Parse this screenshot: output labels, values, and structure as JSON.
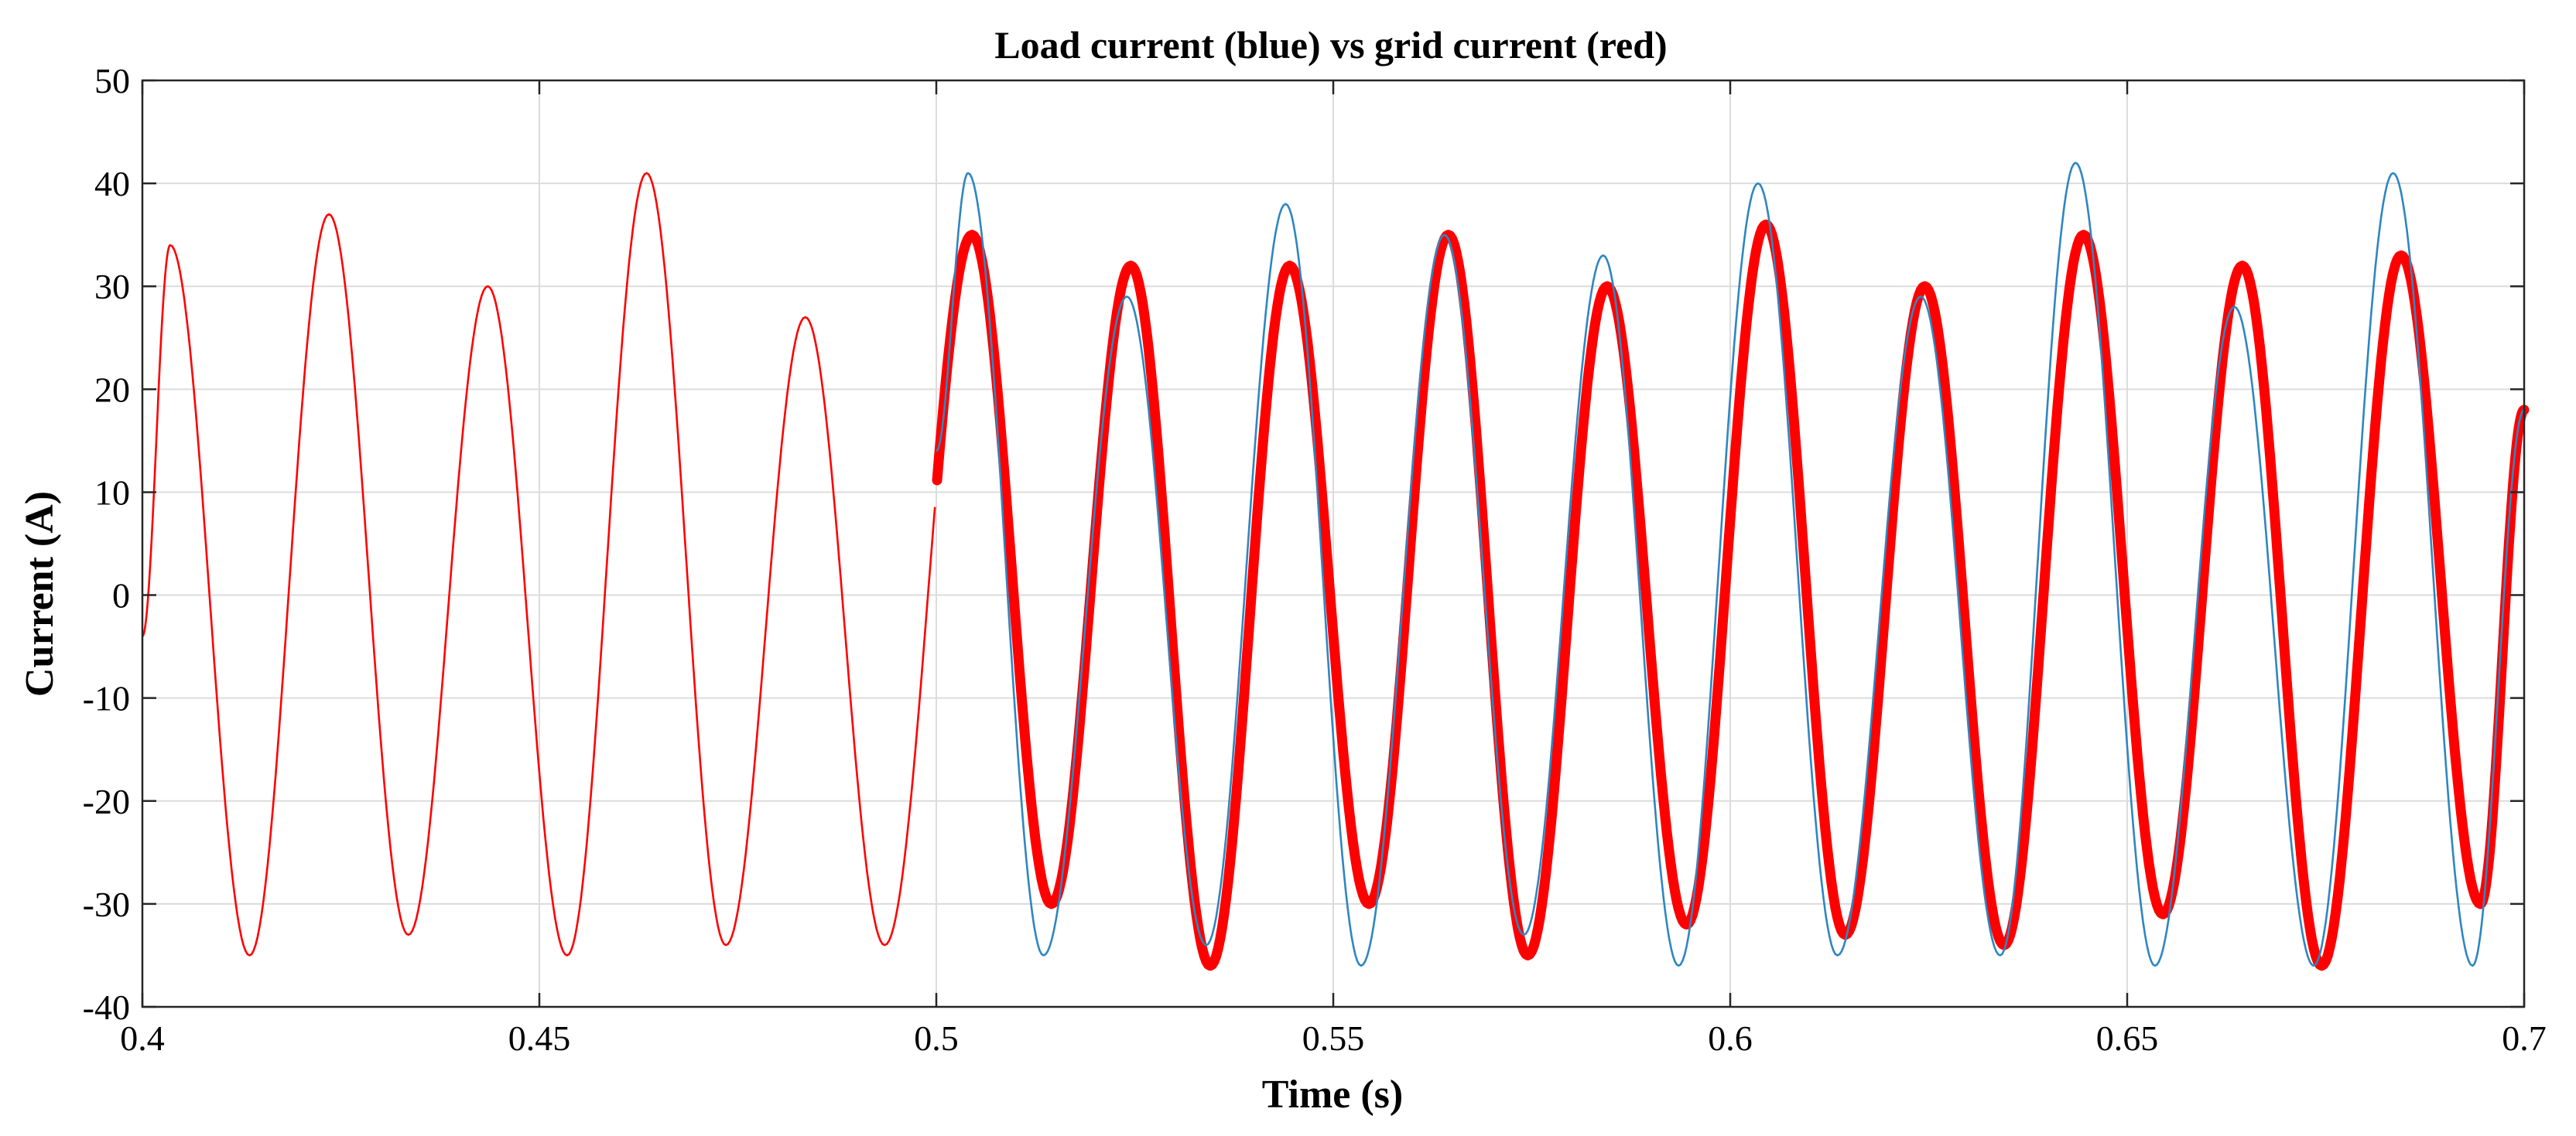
{
  "chart_data": {
    "type": "line",
    "title": "Load current (blue) vs grid current (red)",
    "xlabel": "Time (s)",
    "ylabel": "Current (A)",
    "xlim": [
      0.4,
      0.7
    ],
    "ylim": [
      -40,
      50
    ],
    "grid": true,
    "legend": "none",
    "x_ticks": [
      "0.4",
      "0.45",
      "0.5",
      "0.55",
      "0.6",
      "0.65",
      "0.7"
    ],
    "x_tick_values": [
      0.4,
      0.45,
      0.5,
      0.55,
      0.6,
      0.65,
      0.7
    ],
    "y_ticks": [
      "50",
      "40",
      "30",
      "20",
      "10",
      "0",
      "-10",
      "-20",
      "-30",
      "-40"
    ],
    "y_tick_values": [
      50,
      40,
      30,
      20,
      10,
      0,
      -10,
      -20,
      -30,
      -40
    ],
    "series": [
      {
        "color": "#2e86c1",
        "t_start": 0.5,
        "t_end": 0.7,
        "description_color_role": "load current",
        "peaks": [
          {
            "t": 0.504,
            "v": 41
          },
          {
            "t": 0.5135,
            "v": -35
          },
          {
            "t": 0.524,
            "v": 29
          },
          {
            "t": 0.534,
            "v": -34
          },
          {
            "t": 0.544,
            "v": 38
          },
          {
            "t": 0.5535,
            "v": -36
          },
          {
            "t": 0.564,
            "v": 35
          },
          {
            "t": 0.574,
            "v": -33
          },
          {
            "t": 0.584,
            "v": 33
          },
          {
            "t": 0.5935,
            "v": -36
          },
          {
            "t": 0.6035,
            "v": 40
          },
          {
            "t": 0.6135,
            "v": -35
          },
          {
            "t": 0.624,
            "v": 29
          },
          {
            "t": 0.634,
            "v": -35
          },
          {
            "t": 0.6435,
            "v": 42
          },
          {
            "t": 0.6535,
            "v": -36
          },
          {
            "t": 0.6635,
            "v": 28
          },
          {
            "t": 0.6735,
            "v": -36
          },
          {
            "t": 0.6835,
            "v": 41
          },
          {
            "t": 0.6935,
            "v": -36
          }
        ],
        "start_value": 14,
        "end_value": 18
      },
      {
        "color": "#ff0000",
        "t_start": 0.4,
        "t_end": 0.7,
        "description_color_role": "grid current",
        "peaks": [
          {
            "t": 0.4035,
            "v": 34
          },
          {
            "t": 0.4135,
            "v": -35
          },
          {
            "t": 0.4235,
            "v": 37
          },
          {
            "t": 0.4335,
            "v": -33
          },
          {
            "t": 0.4435,
            "v": 30
          },
          {
            "t": 0.4535,
            "v": -35
          },
          {
            "t": 0.4635,
            "v": 41
          },
          {
            "t": 0.4735,
            "v": -34
          },
          {
            "t": 0.4835,
            "v": 27
          },
          {
            "t": 0.4935,
            "v": -34
          },
          {
            "t": 0.5045,
            "v": 35
          },
          {
            "t": 0.5145,
            "v": -30
          },
          {
            "t": 0.5245,
            "v": 32
          },
          {
            "t": 0.5345,
            "v": -36
          },
          {
            "t": 0.5445,
            "v": 32
          },
          {
            "t": 0.5545,
            "v": -30
          },
          {
            "t": 0.5645,
            "v": 35
          },
          {
            "t": 0.5745,
            "v": -35
          },
          {
            "t": 0.5845,
            "v": 30
          },
          {
            "t": 0.5945,
            "v": -32
          },
          {
            "t": 0.6045,
            "v": 36
          },
          {
            "t": 0.6145,
            "v": -33
          },
          {
            "t": 0.6245,
            "v": 30
          },
          {
            "t": 0.6345,
            "v": -34
          },
          {
            "t": 0.6445,
            "v": 35
          },
          {
            "t": 0.6545,
            "v": -31
          },
          {
            "t": 0.6645,
            "v": 32
          },
          {
            "t": 0.6745,
            "v": -36
          },
          {
            "t": 0.6845,
            "v": 33
          },
          {
            "t": 0.6945,
            "v": -30
          }
        ],
        "start_value": -4,
        "end_value": 18,
        "thick_after": 0.5
      }
    ]
  }
}
